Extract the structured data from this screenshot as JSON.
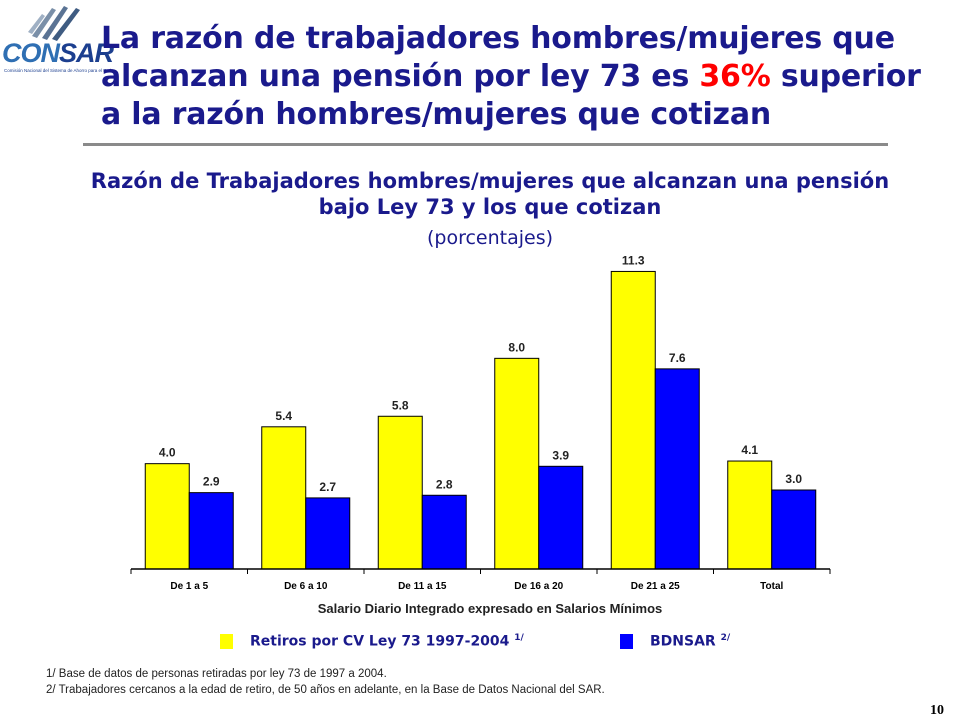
{
  "logo": {
    "text_con": "CON",
    "text_sar": "SAR",
    "tagline": "Comisión Nacional del Sistema de Ahorro para el Retiro"
  },
  "headline": {
    "before": "La razón de trabajadores hombres/mujeres que alcanzan una pensión por ley 73 es ",
    "highlight": "36%",
    "after": " superior a la razón hombres/mujeres que cotizan",
    "highlight_color": "#ff0000"
  },
  "chart_data": {
    "type": "bar",
    "title": "Razón de Trabajadores hombres/mujeres que alcanzan una pensión bajo Ley 73 y los que cotizan",
    "subtitle": "(porcentajes)",
    "xlabel": "Salario Diario Integrado expresado en Salarios Mínimos",
    "ylabel": "",
    "categories": [
      "De 1 a 5",
      "De 6 a 10",
      "De 11 a 15",
      "De 16 a 20",
      "De 21 a 25",
      "Total"
    ],
    "series": [
      {
        "name": "Retiros por CV Ley 73 1997-2004",
        "note_ref": "1/",
        "color": "#ffff00",
        "values": [
          4.0,
          5.4,
          5.8,
          8.0,
          11.3,
          4.1
        ],
        "labels": [
          "4.0",
          "5.4",
          "5.8",
          "8.0",
          "11.3",
          "4.1"
        ]
      },
      {
        "name": "BDNSAR",
        "note_ref": "2/",
        "color": "#0000ff",
        "values": [
          2.9,
          2.7,
          2.8,
          3.9,
          7.6,
          3.0
        ],
        "labels": [
          "2.9",
          "2.7",
          "2.8",
          "3.9",
          "7.6",
          "3.0"
        ]
      }
    ],
    "ylim": [
      0,
      12
    ],
    "grid": false,
    "legend": "bottom"
  },
  "footnotes": [
    "1/ Base de datos de personas retiradas por ley 73 de 1997 a 2004.",
    "2/ Trabajadores cercanos a la edad de retiro, de 50 años en adelante, en la Base de Datos Nacional del SAR."
  ],
  "page_number": "10"
}
